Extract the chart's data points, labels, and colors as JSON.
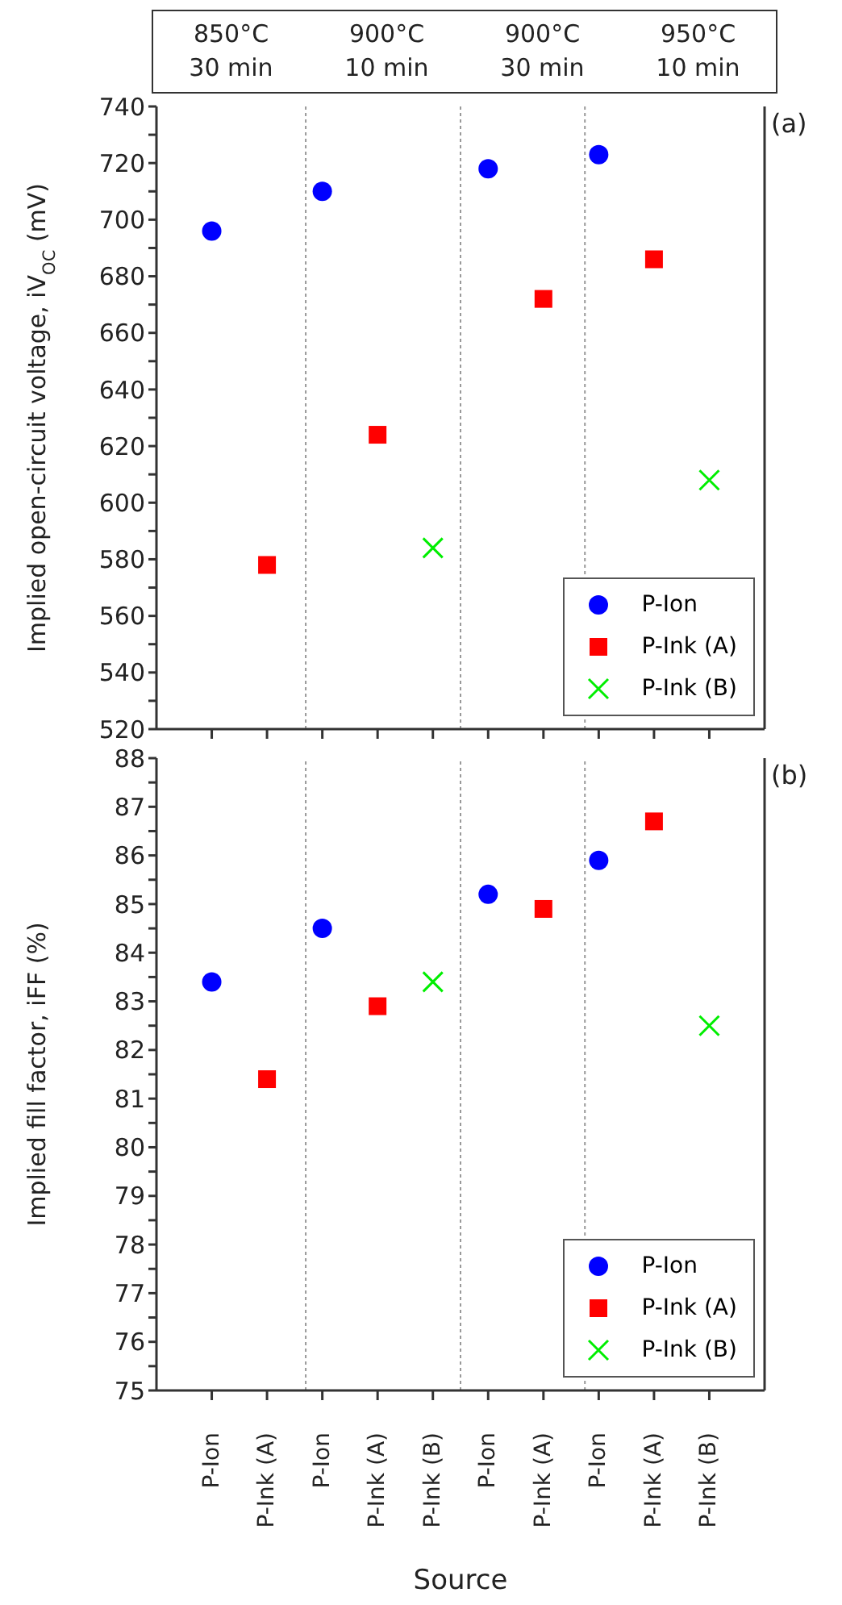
{
  "chart_data": [
    {
      "type": "scatter",
      "title": "(a)",
      "ylabel": "Implied open-circuit voltage, iV$_{OC}$ (mV)",
      "annotations": [
        "850°C\n30 min",
        "900°C\n10 min",
        "900°C\n30 min",
        "950°C\n10 min"
      ],
      "categories": [
        null,
        null,
        null,
        null,
        null,
        null,
        null,
        null,
        null,
        null
      ],
      "series": [
        {
          "name": "P-Ion",
          "color": "#0000ff",
          "marker": "circle",
          "values": [
            696,
            null,
            710,
            null,
            null,
            718,
            null,
            723,
            null,
            null
          ]
        },
        {
          "name": "P-Ink (A)",
          "color": "#ff0000",
          "marker": "square",
          "values": [
            null,
            578,
            null,
            624,
            null,
            null,
            672,
            null,
            686,
            null
          ]
        },
        {
          "name": "P-Ink (B)",
          "color": "#00ee00",
          "marker": "cross",
          "values": [
            null,
            null,
            null,
            null,
            584,
            null,
            null,
            null,
            null,
            608
          ]
        }
      ],
      "ylim": [
        520,
        740
      ],
      "yticks": [
        520,
        {
          "value": 530,
          "label": null
        },
        540,
        {
          "value": 550,
          "label": null
        },
        560,
        {
          "value": 570,
          "label": null
        },
        580,
        {
          "value": 590,
          "label": null
        },
        600,
        {
          "value": 610,
          "label": null
        },
        620,
        {
          "value": 630,
          "label": null
        },
        640,
        {
          "value": 650,
          "label": null
        },
        660,
        {
          "value": 670,
          "label": null
        },
        680,
        {
          "value": 690,
          "label": null
        },
        700,
        {
          "value": 710,
          "label": null
        },
        720,
        {
          "value": 730,
          "label": null
        },
        740
      ],
      "legend": "bottom right",
      "grid": false
    },
    {
      "type": "scatter",
      "title": "(b)",
      "ylabel": "Implied fill factor, iFF (%)",
      "xlabel": "Source",
      "categories": [
        "P-Ion",
        "P-Ink (A)",
        "P-Ion",
        "P-Ink (A)",
        "P-Ink (B)",
        "P-Ion",
        "P-Ink (A)",
        "P-Ion",
        "P-Ink (A)",
        "P-Ink (B)"
      ],
      "series": [
        {
          "name": "P-Ion",
          "color": "#0000ff",
          "marker": "circle",
          "values": [
            83.4,
            null,
            84.5,
            null,
            null,
            85.2,
            null,
            85.9,
            null,
            null
          ]
        },
        {
          "name": "P-Ink (A)",
          "color": "#ff0000",
          "marker": "square",
          "values": [
            null,
            81.4,
            null,
            82.9,
            null,
            null,
            84.9,
            null,
            86.7,
            null
          ]
        },
        {
          "name": "P-Ink (B)",
          "color": "#00ee00",
          "marker": "cross",
          "values": [
            null,
            null,
            null,
            null,
            83.4,
            null,
            null,
            null,
            null,
            82.5
          ]
        }
      ],
      "ylim": [
        75,
        88
      ],
      "yticks": [
        75,
        {
          "value": 75.5,
          "label": null
        },
        76,
        {
          "value": 76.5,
          "label": null
        },
        77,
        {
          "value": 77.5,
          "label": null
        },
        78,
        {
          "value": 78.5,
          "label": null
        },
        79,
        {
          "value": 79.5,
          "label": null
        },
        80,
        {
          "value": 80.5,
          "label": null
        },
        81,
        {
          "value": 81.5,
          "label": null
        },
        82,
        {
          "value": 82.5,
          "label": null
        },
        83,
        {
          "value": 83.5,
          "label": null
        },
        84,
        {
          "value": 84.5,
          "label": null
        },
        85,
        {
          "value": 85.5,
          "label": null
        },
        86,
        {
          "value": 86.5,
          "label": null
        },
        87,
        {
          "value": 87.5,
          "label": null
        },
        88
      ],
      "legend": "bottom right",
      "grid": false
    }
  ]
}
